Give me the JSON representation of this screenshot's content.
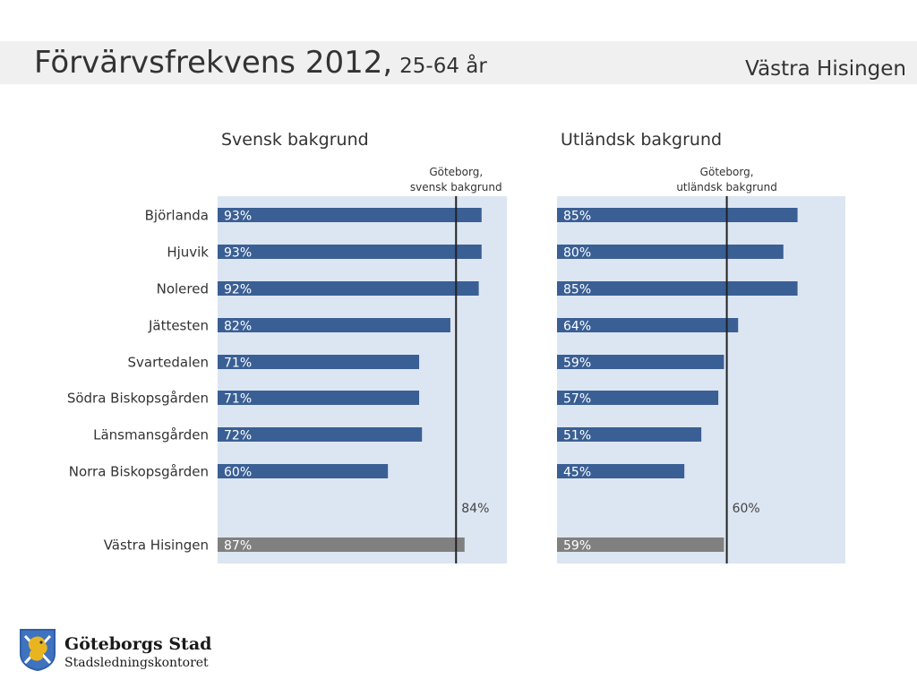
{
  "header": {
    "title": "Förvärvsfrekvens 2012,",
    "subtitle": "25-64 år",
    "area": "Västra Hisingen"
  },
  "colors": {
    "bar": "#3a5f94",
    "total_bar": "#808080",
    "panel_bg": "#dce6f2",
    "reference_line": "#222222"
  },
  "chart_data": [
    {
      "type": "bar",
      "orientation": "horizontal",
      "title": "Svensk bakgrund",
      "categories": [
        "Björlanda",
        "Hjuvik",
        "Nolered",
        "Jättesten",
        "Svartedalen",
        "Södra Biskopsgården",
        "Länsmansgården",
        "Norra Biskopsgården",
        "Västra Hisingen"
      ],
      "values": [
        93,
        93,
        92,
        82,
        71,
        71,
        72,
        60,
        87
      ],
      "labels": [
        "93%",
        "93%",
        "92%",
        "82%",
        "71%",
        "71%",
        "72%",
        "60%",
        "87%"
      ],
      "highlight_index": 8,
      "reference": {
        "label_line1": "Göteborg,",
        "label_line2": "svensk bakgrund",
        "value": 84,
        "value_label": "84%"
      },
      "xlim": [
        0,
        100
      ]
    },
    {
      "type": "bar",
      "orientation": "horizontal",
      "title": "Utländsk bakgrund",
      "categories": [
        "Björlanda",
        "Hjuvik",
        "Nolered",
        "Jättesten",
        "Svartedalen",
        "Södra Biskopsgården",
        "Länsmansgården",
        "Norra Biskopsgården",
        "Västra Hisingen"
      ],
      "values": [
        85,
        80,
        85,
        64,
        59,
        57,
        51,
        45,
        59
      ],
      "labels": [
        "85%",
        "80%",
        "85%",
        "64%",
        "59%",
        "57%",
        "51%",
        "45%",
        "59%"
      ],
      "highlight_index": 8,
      "reference": {
        "label_line1": "Göteborg,",
        "label_line2": "utländsk bakgrund",
        "value": 60,
        "value_label": "60%"
      },
      "xlim": [
        0,
        100
      ]
    }
  ],
  "logo": {
    "org": "Göteborgs Stad",
    "dept": "Stadsledningskontoret",
    "icon": "lion-shield-icon"
  }
}
